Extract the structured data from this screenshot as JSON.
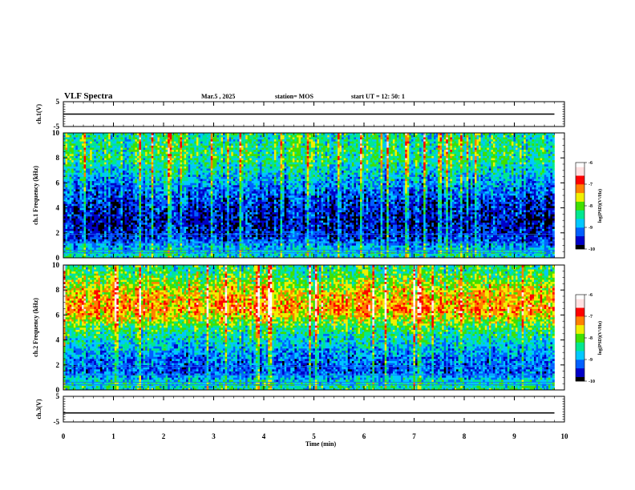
{
  "header": {
    "title": "VLF Spectra",
    "date": "Mar.5 , 2025",
    "station": "station= MOS",
    "start": "start UT = 12: 50: 1"
  },
  "chart_data": [
    {
      "type": "line",
      "name": "ch1-voltage",
      "ylabel": "ch.1(V)",
      "ylim": [
        -5,
        5
      ],
      "yticks": [
        "5",
        "-5"
      ],
      "x": [
        0,
        9.8
      ],
      "y": [
        0,
        0
      ],
      "xlim": [
        0,
        10
      ]
    },
    {
      "type": "heatmap",
      "name": "ch1-spectrogram",
      "ylabel": "ch.1 Frequency (kHz)",
      "ylim": [
        0,
        10
      ],
      "yticks": [
        "0",
        "2",
        "4",
        "6",
        "8",
        "10"
      ],
      "xlim": [
        0,
        10
      ],
      "data_end_min": 9.8,
      "colorbar": {
        "label": "log(PSD)(V²/Hz)",
        "range": [
          -10,
          -6
        ],
        "ticks": [
          "-6",
          "-7",
          "-8",
          "-9",
          "-10"
        ]
      },
      "mean_log_psd_by_freq": [
        {
          "freq_khz": 0.5,
          "level": -8.6
        },
        {
          "freq_khz": 1.5,
          "level": -9.4
        },
        {
          "freq_khz": 3.0,
          "level": -9.7
        },
        {
          "freq_khz": 5.0,
          "level": -9.3
        },
        {
          "freq_khz": 6.5,
          "level": -8.8
        },
        {
          "freq_khz": 8.0,
          "level": -8.3
        },
        {
          "freq_khz": 9.5,
          "level": -8.4
        }
      ]
    },
    {
      "type": "heatmap",
      "name": "ch2-spectrogram",
      "ylabel": "ch.2 Frequency (kHz)",
      "ylim": [
        0,
        10
      ],
      "yticks": [
        "0",
        "2",
        "4",
        "6",
        "8",
        "10"
      ],
      "xlim": [
        0,
        10
      ],
      "data_end_min": 9.8,
      "colorbar": {
        "label": "log(PSD)(V²/Hz)",
        "range": [
          -10,
          -6
        ],
        "ticks": [
          "-6",
          "-7",
          "-8",
          "-9",
          "-10"
        ]
      },
      "mean_log_psd_by_freq": [
        {
          "freq_khz": 0.5,
          "level": -8.5
        },
        {
          "freq_khz": 1.5,
          "level": -9.3
        },
        {
          "freq_khz": 3.0,
          "level": -9.0
        },
        {
          "freq_khz": 5.0,
          "level": -8.2
        },
        {
          "freq_khz": 6.5,
          "level": -7.2
        },
        {
          "freq_khz": 8.0,
          "level": -7.6
        },
        {
          "freq_khz": 9.5,
          "level": -8.3
        }
      ]
    },
    {
      "type": "line",
      "name": "ch3-voltage",
      "ylabel": "ch.3(V)",
      "ylim": [
        -5,
        5
      ],
      "yticks": [
        "5",
        "-5"
      ],
      "x": [
        0,
        9.8
      ],
      "y": [
        -1.5,
        -1.5
      ],
      "xlim": [
        0,
        10
      ]
    }
  ],
  "xaxis": {
    "label": "Time (min)",
    "ticks": [
      "0",
      "1",
      "2",
      "3",
      "4",
      "5",
      "6",
      "7",
      "8",
      "9",
      "10"
    ]
  },
  "colors": {
    "colormap": [
      "#000000",
      "#0000c8",
      "#0060ff",
      "#00c8ff",
      "#00e890",
      "#40e000",
      "#f0f000",
      "#ff8000",
      "#ff0000",
      "#ffe0e0",
      "#ffffff"
    ]
  }
}
